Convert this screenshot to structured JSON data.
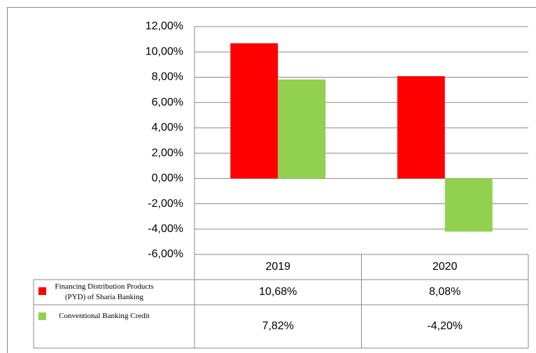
{
  "chart_data": {
    "type": "bar",
    "categories": [
      "2019",
      "2020"
    ],
    "series": [
      {
        "name": "Financing Distribution Products (PYD) of Sharia Banking",
        "color": "#ff0000",
        "values": [
          10.68,
          8.08
        ],
        "value_labels": [
          "10,68%",
          "8,08%"
        ]
      },
      {
        "name": "Conventional Banking Credit",
        "color": "#92d050",
        "values": [
          7.82,
          -4.2
        ],
        "value_labels": [
          "7,82%",
          "-4,20%"
        ]
      }
    ],
    "ylim": [
      -6,
      12
    ],
    "yticks": [
      {
        "value": -6,
        "label": "-6,00%"
      },
      {
        "value": -4,
        "label": "-4,00%"
      },
      {
        "value": -2,
        "label": "-2,00%"
      },
      {
        "value": 0,
        "label": "0,00%"
      },
      {
        "value": 2,
        "label": "2,00%"
      },
      {
        "value": 4,
        "label": "4,00%"
      },
      {
        "value": 6,
        "label": "6,00%"
      },
      {
        "value": 8,
        "label": "8,00%"
      },
      {
        "value": 10,
        "label": "10,00%"
      },
      {
        "value": 12,
        "label": "12,00%"
      }
    ],
    "grid": true
  }
}
